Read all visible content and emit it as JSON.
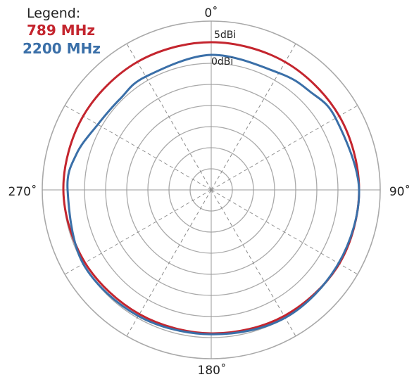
{
  "chart_data": {
    "type": "polar-line",
    "legend": {
      "title": "Legend:",
      "entries": [
        {
          "label": "789 MHz",
          "color": "#c4252e"
        },
        {
          "label": "2200 MHz",
          "color": "#3a6fa8"
        }
      ]
    },
    "angle_labels": [
      "0˚",
      "90˚",
      "180˚",
      "270˚"
    ],
    "ring_labels": [
      {
        "text": "5dBi",
        "gain_db": 5
      },
      {
        "text": "0dBi",
        "gain_db": 0
      }
    ],
    "grid": true,
    "radial_axis": {
      "min_db": -35,
      "max_db": 5,
      "step_db": 5
    },
    "angular_axis": {
      "direction": "clockwise",
      "zero": "top",
      "spoke_step_deg": 30
    },
    "series": [
      {
        "name": "789 MHz",
        "color": "#c4252e",
        "theta_deg": [
          0,
          30,
          60,
          90,
          120,
          150,
          180,
          210,
          240,
          270,
          300,
          330
        ],
        "gain_db": [
          0,
          0,
          0,
          0,
          0,
          -0.5,
          -1,
          -1,
          -0.5,
          0,
          0,
          0
        ]
      },
      {
        "name": "2200 MHz",
        "color": "#3a6fa8",
        "theta_deg": [
          0,
          30,
          45,
          60,
          90,
          120,
          150,
          180,
          210,
          240,
          270,
          285,
          300,
          315,
          330
        ],
        "gain_db": [
          -3,
          -3,
          -2,
          -1,
          0,
          -0.2,
          0,
          -0.8,
          -0.5,
          0,
          -1,
          -2,
          -4,
          -4.5,
          -4
        ]
      }
    ]
  }
}
